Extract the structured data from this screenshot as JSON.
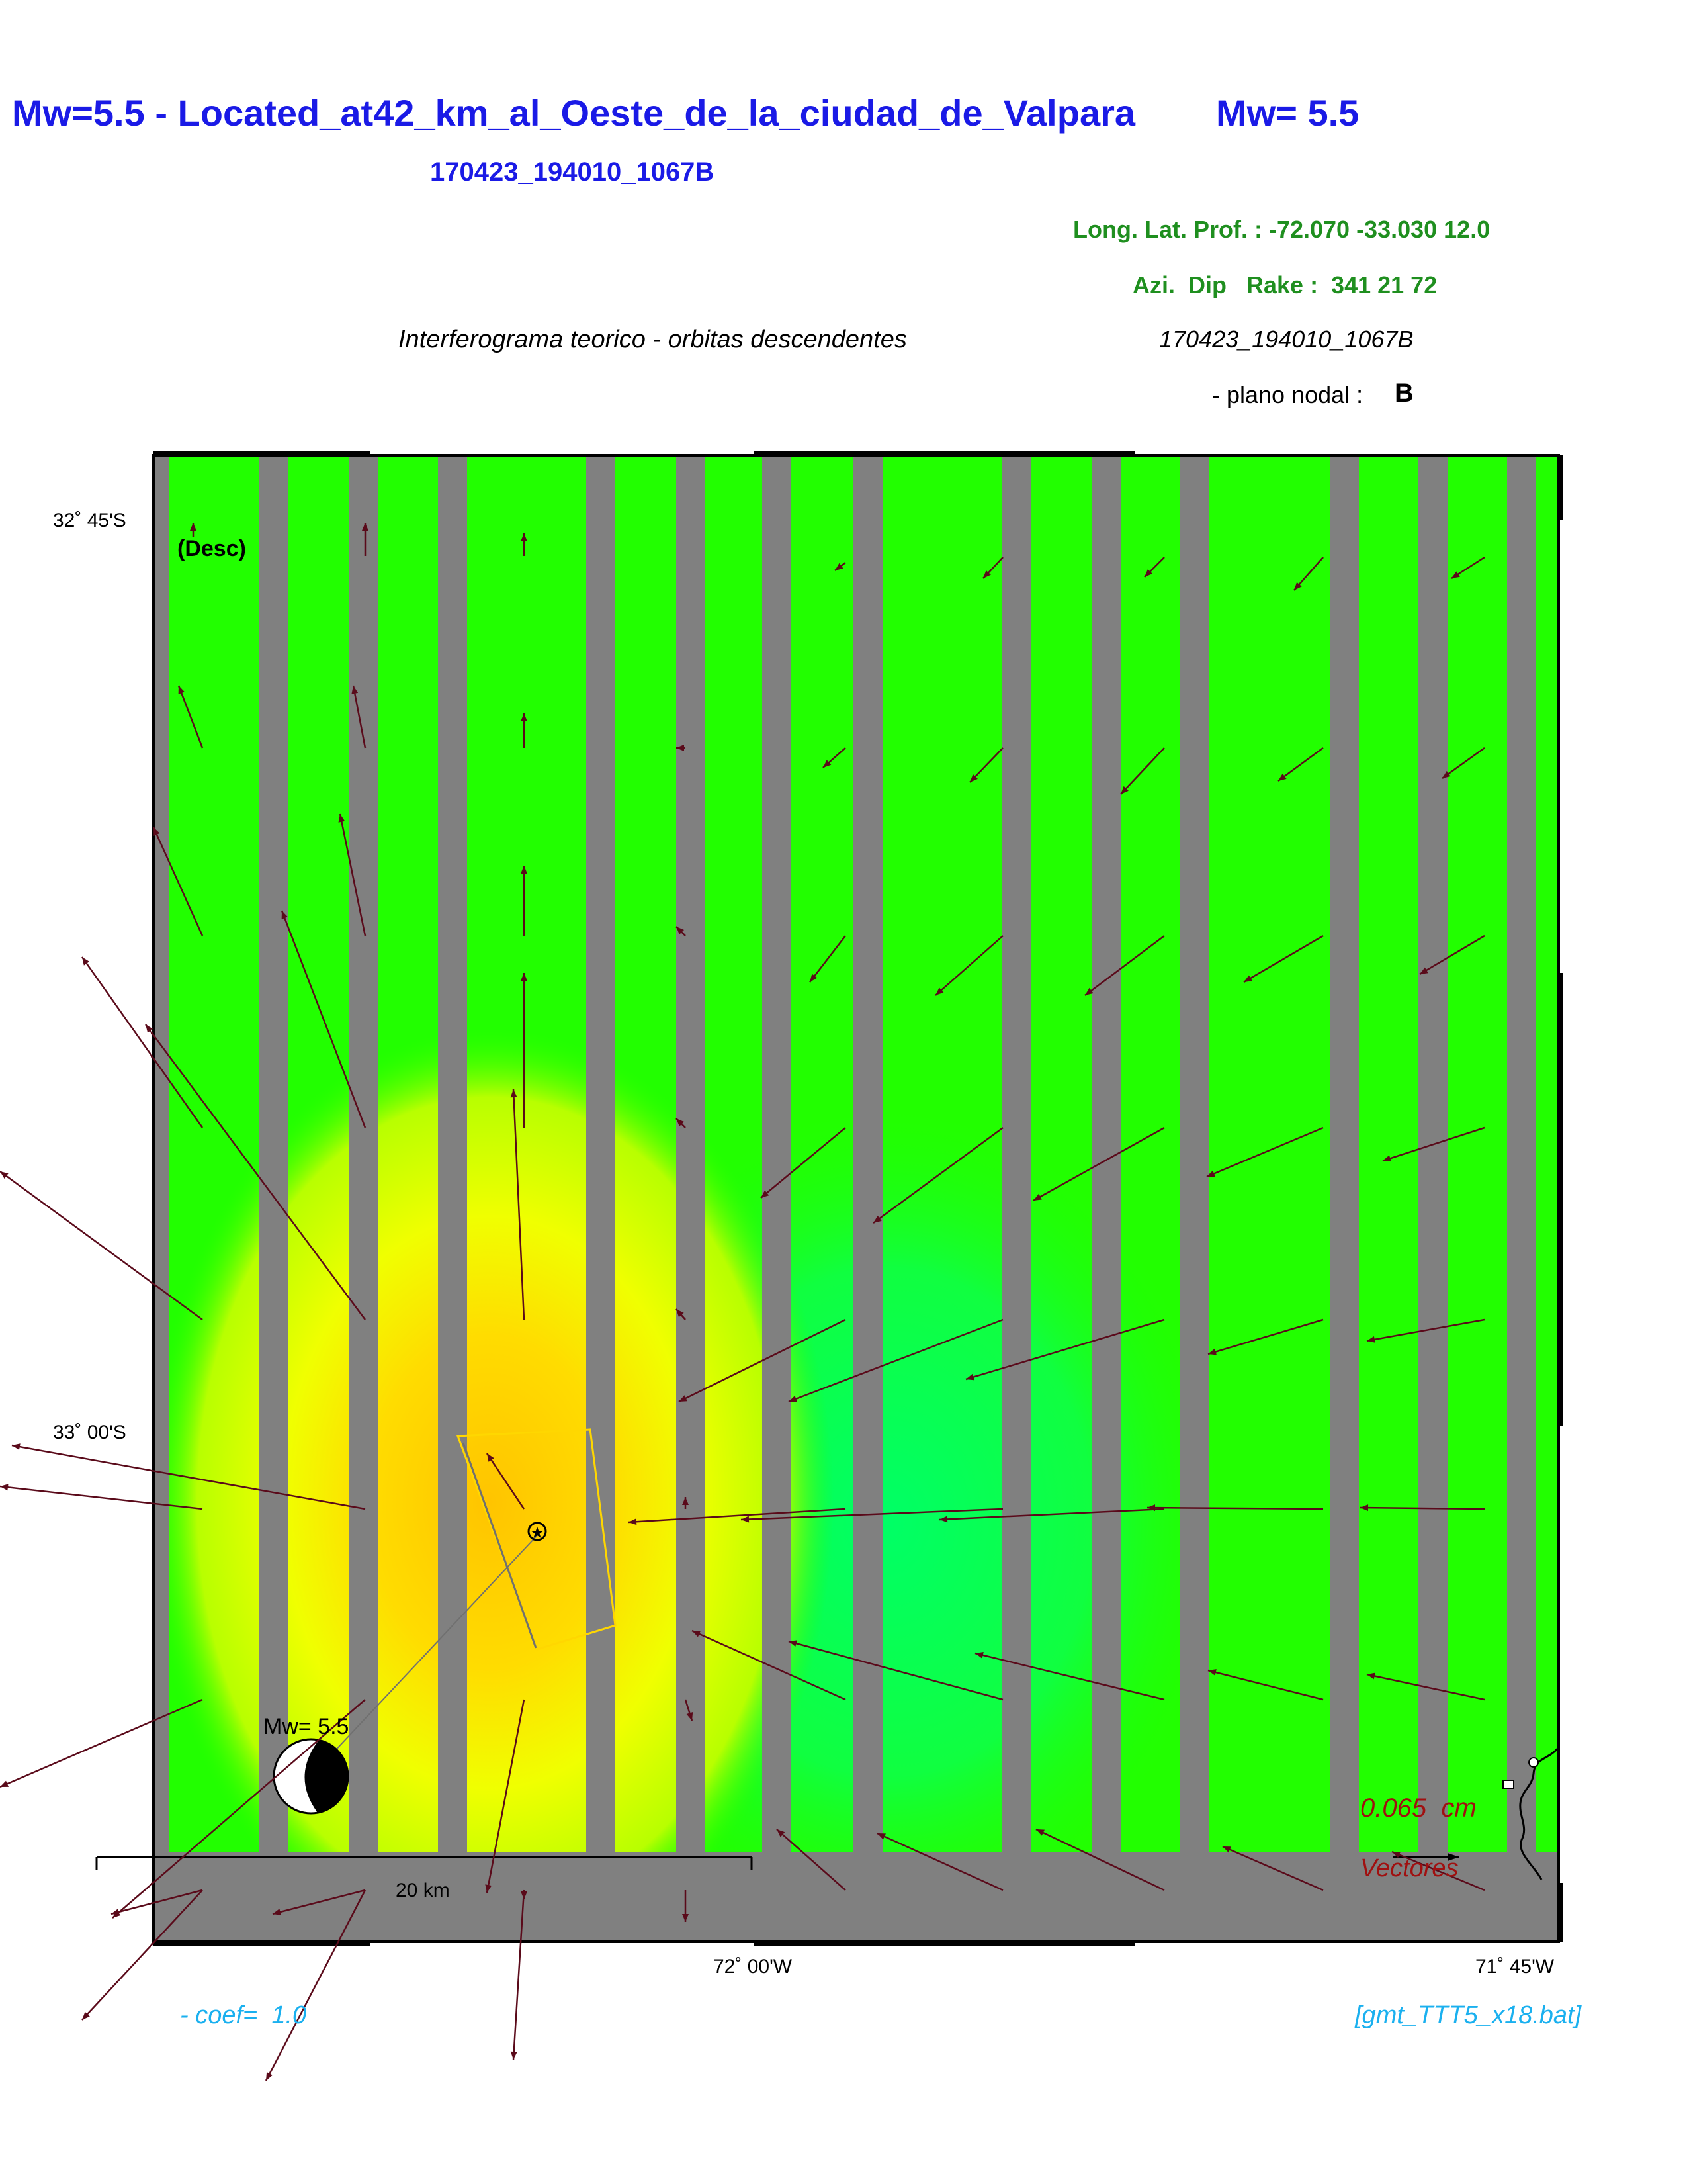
{
  "header": {
    "title_left": "Mw=5.5 - Located_at42_km_al_Oeste_de_la_ciudad_de_Valpara",
    "title_right": "Mw= 5.5",
    "event_id": "170423_194010_1067B",
    "coords_line": "Long. Lat. Prof. : -72.070 -33.030 12.0",
    "mech_line": "Azi.  Dip   Rake :  341 21 72",
    "interferogram_label": "Interferograma teorico - orbitas descendentes",
    "event_id_italic": "170423_194010_1067B",
    "nodal_plane_label": "- plano nodal :",
    "nodal_plane_value": "B"
  },
  "map": {
    "orbit_label": "(Desc)",
    "lat_labels": [
      "32˚ 45'S",
      "33˚ 00'S"
    ],
    "lon_labels": [
      "72˚ 00'W",
      "71˚ 45'W"
    ],
    "scale_label": "20 km",
    "beachball_label": "Mw= 5.5",
    "vector_scale_value": "0.065  cm",
    "vector_scale_label": "Vectores",
    "colors": {
      "background": "#22ff00",
      "stripe": "#808080",
      "uplift_core": "#ffc800",
      "uplift_mid": "#f5ff00",
      "vector": "#5a0a1a",
      "fault_box": "#ffd700"
    }
  },
  "footer": {
    "coef_label": "- coef=  1.0",
    "script_label": "[gmt_TTT5_x18.bat]"
  }
}
